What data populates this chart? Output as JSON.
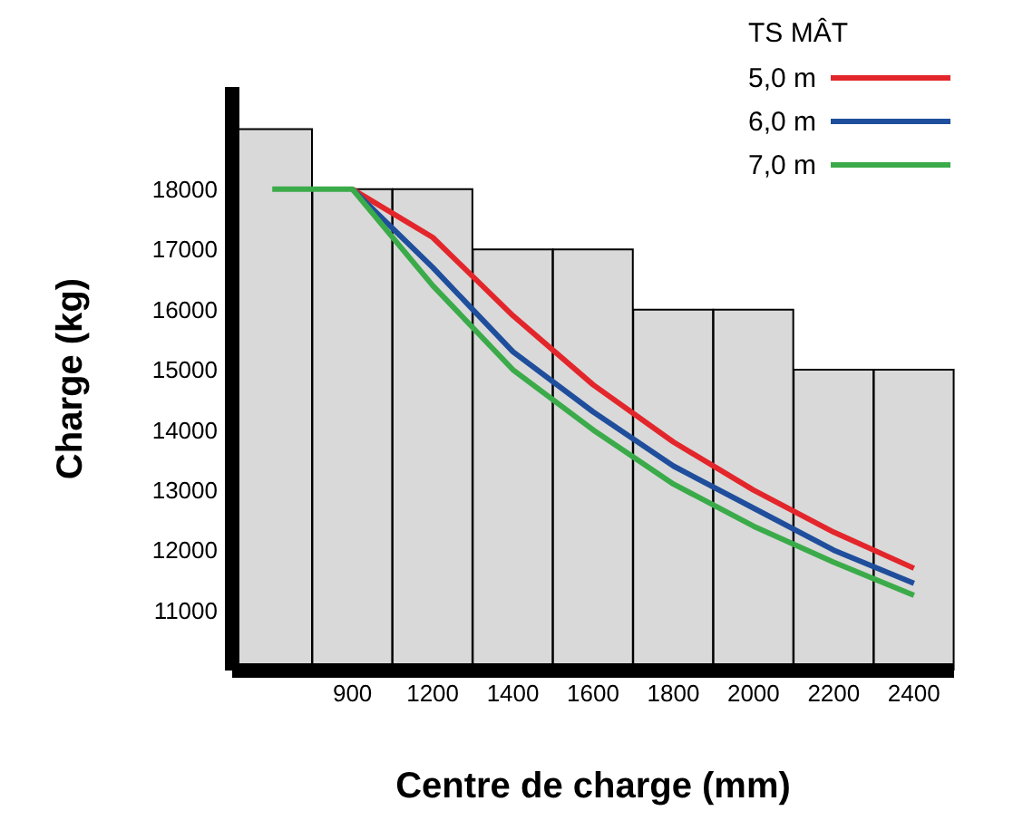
{
  "chart_data": {
    "type": "line",
    "xlabel": "Centre de charge (mm)",
    "ylabel": "Charge (kg)",
    "legend_title": "TS MÂT",
    "legend": "top right",
    "grid": false,
    "marker": "none",
    "line_style": "solid",
    "categories": [
      null,
      "900",
      "1200",
      "1400",
      "1600",
      "1800",
      "2000",
      "2200",
      "2400"
    ],
    "ylim": [
      10000,
      19700
    ],
    "yticks": [
      11000,
      12000,
      13000,
      14000,
      15000,
      16000,
      17000,
      18000
    ],
    "series": [
      {
        "type": "bar",
        "color": "#d9d9d9",
        "values": [
          19000,
          18000,
          18000,
          17000,
          17000,
          16000,
          16000,
          15000,
          15000
        ]
      },
      {
        "name": "5,0 m",
        "color": "#e3262b",
        "values": [
          null,
          18000,
          17200,
          15900,
          14750,
          13800,
          13000,
          12300,
          11700
        ]
      },
      {
        "name": "6,0 m",
        "color": "#1f4e9c",
        "values": [
          null,
          18000,
          16700,
          15300,
          14300,
          13400,
          12700,
          12000,
          11450
        ]
      },
      {
        "name": "7,0 m",
        "color": "#3bab4a",
        "values": [
          18000,
          18000,
          16400,
          15000,
          14000,
          13100,
          12400,
          11800,
          11250
        ]
      }
    ]
  }
}
